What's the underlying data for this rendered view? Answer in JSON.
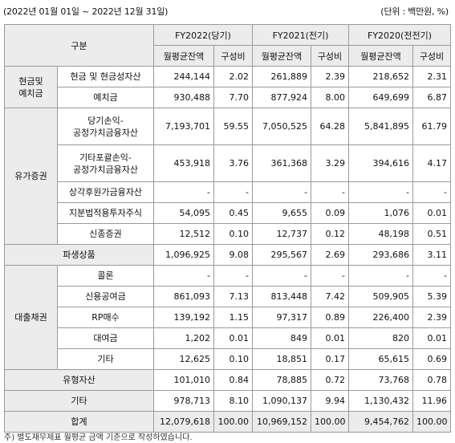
{
  "period": "(2022년 01월 01일 ~ 2022년 12월 31일)",
  "unit": "(단위 : 백만원, %)",
  "header": {
    "category": "구분",
    "fy2022": "FY2022(당기)",
    "fy2021": "FY2021(전기)",
    "fy2020": "FY2020(전전기)",
    "avg_balance": "월평균잔액",
    "ratio": "구성비"
  },
  "groups": {
    "cash": "현금및\n예치금",
    "securities": "유가증권",
    "derivatives": "파생상품",
    "loans": "대출채권",
    "tangible": "유형자산",
    "other": "기타",
    "total": "합계"
  },
  "rows": [
    {
      "group": "cash",
      "label": "현금 및 현금성자산",
      "v": [
        "244,144",
        "2.02",
        "261,889",
        "2.39",
        "218,652",
        "2.31"
      ]
    },
    {
      "group": "cash",
      "label": "예치금",
      "v": [
        "930,488",
        "7.70",
        "877,924",
        "8.00",
        "649,699",
        "6.87"
      ]
    },
    {
      "group": "securities",
      "label": "당기손익-\n공정가치금융자산",
      "v": [
        "7,193,701",
        "59.55",
        "7,050,525",
        "64.28",
        "5,841,895",
        "61.79"
      ]
    },
    {
      "group": "securities",
      "label": "기타포괄손익-\n공정가치금융자산",
      "v": [
        "453,918",
        "3.76",
        "361,368",
        "3.29",
        "394,616",
        "4.17"
      ]
    },
    {
      "group": "securities",
      "label": "상각후원가금융자산",
      "v": [
        "-",
        "-",
        "-",
        "-",
        "-",
        "-"
      ]
    },
    {
      "group": "securities",
      "label": "지분법적용투자주식",
      "v": [
        "54,095",
        "0.45",
        "9,655",
        "0.09",
        "1,076",
        "0.01"
      ]
    },
    {
      "group": "securities",
      "label": "신종증권",
      "v": [
        "12,512",
        "0.10",
        "12,737",
        "0.12",
        "48,198",
        "0.51"
      ]
    },
    {
      "group": "derivatives",
      "label": "",
      "v": [
        "1,096,925",
        "9.08",
        "295,567",
        "2.69",
        "293,686",
        "3.11"
      ]
    },
    {
      "group": "loans",
      "label": "콜론",
      "v": [
        "-",
        "-",
        "-",
        "-",
        "-",
        "-"
      ]
    },
    {
      "group": "loans",
      "label": "신용공여금",
      "v": [
        "861,093",
        "7.13",
        "813,448",
        "7.42",
        "509,905",
        "5.39"
      ]
    },
    {
      "group": "loans",
      "label": "RP매수",
      "v": [
        "139,192",
        "1.15",
        "97,317",
        "0.89",
        "226,400",
        "2.39"
      ]
    },
    {
      "group": "loans",
      "label": "대여금",
      "v": [
        "1,202",
        "0.01",
        "849",
        "0.01",
        "820",
        "0.01"
      ]
    },
    {
      "group": "loans",
      "label": "기타",
      "v": [
        "12,625",
        "0.10",
        "18,851",
        "0.17",
        "65,615",
        "0.69"
      ]
    },
    {
      "group": "tangible",
      "label": "",
      "v": [
        "101,010",
        "0.84",
        "78,885",
        "0.72",
        "73,768",
        "0.78"
      ]
    },
    {
      "group": "other",
      "label": "",
      "v": [
        "978,713",
        "8.10",
        "1,090,137",
        "9.94",
        "1,130,432",
        "11.96"
      ]
    },
    {
      "group": "total",
      "label": "",
      "v": [
        "12,079,618",
        "100.00",
        "10,969,152",
        "100.00",
        "9,454,762",
        "100.00"
      ]
    }
  ],
  "footnote": "주) 별도재무제표 월평균 금액 기준으로 작성하였습니다."
}
